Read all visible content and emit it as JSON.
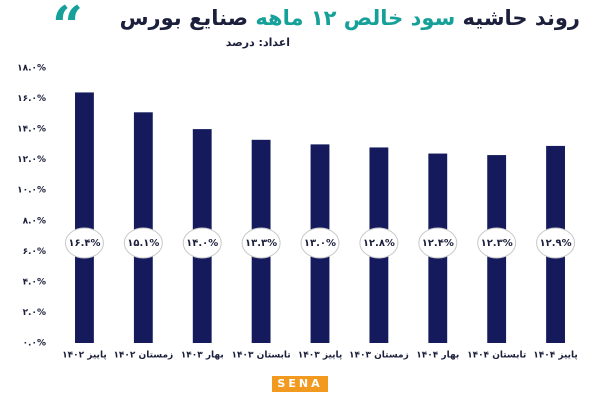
{
  "chart_data": {
    "type": "bar",
    "title_start": "روند حاشیه",
    "title_highlight": "سود خالص ۱۲ ماهه",
    "title_end": "صنایع بورس",
    "subtitle": "اعداد: درصد",
    "categories": [
      "پاییز ۱۴۰۲",
      "زمستان ۱۴۰۲",
      "بهار ۱۴۰۳",
      "تابستان ۱۴۰۳",
      "پاییز ۱۴۰۳",
      "زمستان ۱۴۰۳",
      "بهار ۱۴۰۴",
      "تابستان ۱۴۰۴",
      "پاییز ۱۴۰۴"
    ],
    "values": [
      16.4,
      15.1,
      14.0,
      13.3,
      13.0,
      12.8,
      12.4,
      12.3,
      12.9
    ],
    "value_labels": [
      "۱۶.۴%",
      "۱۵.۱%",
      "۱۴.۰%",
      "۱۳.۳%",
      "۱۳.۰%",
      "۱۲.۸%",
      "۱۲.۴%",
      "۱۲.۳%",
      "۱۲.۹%"
    ],
    "color": "#141a5c",
    "ylim": [
      0,
      18
    ],
    "yticks": [
      {
        "value": 0,
        "label": "۰.۰%"
      },
      {
        "value": 2,
        "label": "۲.۰%"
      },
      {
        "value": 4,
        "label": "۴.۰%"
      },
      {
        "value": 6,
        "label": "۶.۰%"
      },
      {
        "value": 8,
        "label": "۸.۰%"
      },
      {
        "value": 10,
        "label": "۱۰.۰%"
      },
      {
        "value": 12,
        "label": "۱۲.۰%"
      },
      {
        "value": 14,
        "label": "۱۴.۰%"
      },
      {
        "value": 16,
        "label": "۱۶.۰%"
      },
      {
        "value": 18,
        "label": "۱۸.۰%"
      }
    ],
    "grid": false,
    "logo": "SENA"
  }
}
